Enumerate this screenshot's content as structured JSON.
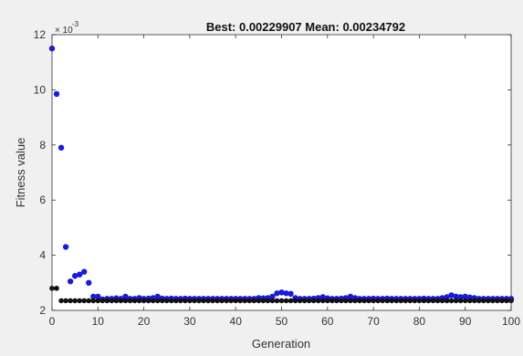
{
  "chart_data": {
    "type": "scatter",
    "title": "Best: 0.00229907 Mean: 0.00234792",
    "xlabel": "Generation",
    "ylabel": "Fitness value",
    "y_multiplier_label": "× 10",
    "y_multiplier_exponent": "-3",
    "xlim": [
      0,
      100
    ],
    "ylim": [
      2,
      12
    ],
    "x_ticks": [
      0,
      10,
      20,
      30,
      40,
      50,
      60,
      70,
      80,
      90,
      100
    ],
    "x_tick_labels": [
      "0",
      "10",
      "20",
      "30",
      "40",
      "50",
      "60",
      "70",
      "80",
      "90",
      "100"
    ],
    "y_ticks": [
      2,
      4,
      6,
      8,
      10,
      12
    ],
    "y_tick_labels": [
      "2",
      "4",
      "6",
      "8",
      "10",
      "12"
    ],
    "grid": false,
    "colors": {
      "mean": "#1a1adc",
      "best": "#111111",
      "axes_background": "#ffffff",
      "figure_background": "#f0f0f0"
    },
    "series": [
      {
        "key": "mean",
        "values_note": "blue markers (mean fitness per generation), y in units of 10^-3",
        "x": [
          0,
          1,
          2,
          3,
          4,
          5,
          6,
          7,
          8,
          9,
          10,
          11,
          12,
          13,
          14,
          15,
          16,
          17,
          18,
          19,
          20,
          21,
          22,
          23,
          24,
          25,
          26,
          27,
          28,
          29,
          30,
          31,
          32,
          33,
          34,
          35,
          36,
          37,
          38,
          39,
          40,
          41,
          42,
          43,
          44,
          45,
          46,
          47,
          48,
          49,
          50,
          51,
          52,
          53,
          54,
          55,
          56,
          57,
          58,
          59,
          60,
          61,
          62,
          63,
          64,
          65,
          66,
          67,
          68,
          69,
          70,
          71,
          72,
          73,
          74,
          75,
          76,
          77,
          78,
          79,
          80,
          81,
          82,
          83,
          84,
          85,
          86,
          87,
          88,
          89,
          90,
          91,
          92,
          93,
          94,
          95,
          96,
          97,
          98,
          99,
          100
        ],
        "y": [
          11.5,
          9.85,
          7.9,
          4.3,
          3.05,
          3.25,
          3.3,
          3.4,
          3.0,
          2.5,
          2.5,
          2.4,
          2.42,
          2.42,
          2.44,
          2.42,
          2.5,
          2.42,
          2.42,
          2.45,
          2.42,
          2.43,
          2.45,
          2.5,
          2.43,
          2.42,
          2.43,
          2.42,
          2.42,
          2.43,
          2.42,
          2.42,
          2.42,
          2.42,
          2.42,
          2.42,
          2.42,
          2.42,
          2.42,
          2.42,
          2.42,
          2.42,
          2.42,
          2.42,
          2.42,
          2.45,
          2.44,
          2.45,
          2.5,
          2.62,
          2.65,
          2.62,
          2.6,
          2.45,
          2.42,
          2.42,
          2.42,
          2.43,
          2.45,
          2.48,
          2.44,
          2.42,
          2.42,
          2.43,
          2.45,
          2.5,
          2.45,
          2.42,
          2.42,
          2.42,
          2.43,
          2.42,
          2.42,
          2.43,
          2.42,
          2.42,
          2.42,
          2.42,
          2.42,
          2.42,
          2.42,
          2.43,
          2.42,
          2.42,
          2.42,
          2.45,
          2.48,
          2.55,
          2.5,
          2.48,
          2.5,
          2.47,
          2.45,
          2.42,
          2.42,
          2.42,
          2.42,
          2.42,
          2.42,
          2.42,
          2.42
        ]
      },
      {
        "key": "best",
        "values_note": "black markers (best fitness per generation), y in units of 10^-3",
        "x": [
          0,
          1,
          2,
          3,
          4,
          5,
          6,
          7,
          8,
          9,
          10,
          11,
          12,
          13,
          14,
          15,
          16,
          17,
          18,
          19,
          20,
          21,
          22,
          23,
          24,
          25,
          26,
          27,
          28,
          29,
          30,
          31,
          32,
          33,
          34,
          35,
          36,
          37,
          38,
          39,
          40,
          41,
          42,
          43,
          44,
          45,
          46,
          47,
          48,
          49,
          50,
          51,
          52,
          53,
          54,
          55,
          56,
          57,
          58,
          59,
          60,
          61,
          62,
          63,
          64,
          65,
          66,
          67,
          68,
          69,
          70,
          71,
          72,
          73,
          74,
          75,
          76,
          77,
          78,
          79,
          80,
          81,
          82,
          83,
          84,
          85,
          86,
          87,
          88,
          89,
          90,
          91,
          92,
          93,
          94,
          95,
          96,
          97,
          98,
          99,
          100
        ],
        "y": [
          2.8,
          2.8,
          2.35,
          2.35,
          2.35,
          2.35,
          2.35,
          2.35,
          2.35,
          2.35,
          2.35,
          2.35,
          2.35,
          2.35,
          2.35,
          2.35,
          2.35,
          2.35,
          2.35,
          2.35,
          2.35,
          2.35,
          2.35,
          2.35,
          2.35,
          2.35,
          2.35,
          2.35,
          2.35,
          2.35,
          2.35,
          2.35,
          2.35,
          2.35,
          2.35,
          2.35,
          2.35,
          2.35,
          2.35,
          2.35,
          2.35,
          2.35,
          2.35,
          2.35,
          2.35,
          2.35,
          2.35,
          2.35,
          2.35,
          2.35,
          2.35,
          2.35,
          2.35,
          2.35,
          2.35,
          2.35,
          2.35,
          2.35,
          2.35,
          2.35,
          2.35,
          2.35,
          2.35,
          2.35,
          2.35,
          2.35,
          2.35,
          2.35,
          2.35,
          2.35,
          2.35,
          2.35,
          2.35,
          2.35,
          2.35,
          2.35,
          2.35,
          2.35,
          2.35,
          2.35,
          2.35,
          2.35,
          2.35,
          2.35,
          2.35,
          2.35,
          2.35,
          2.35,
          2.35,
          2.35,
          2.35,
          2.35,
          2.35,
          2.35,
          2.35,
          2.35,
          2.35,
          2.35,
          2.35,
          2.35,
          2.35
        ]
      }
    ]
  }
}
